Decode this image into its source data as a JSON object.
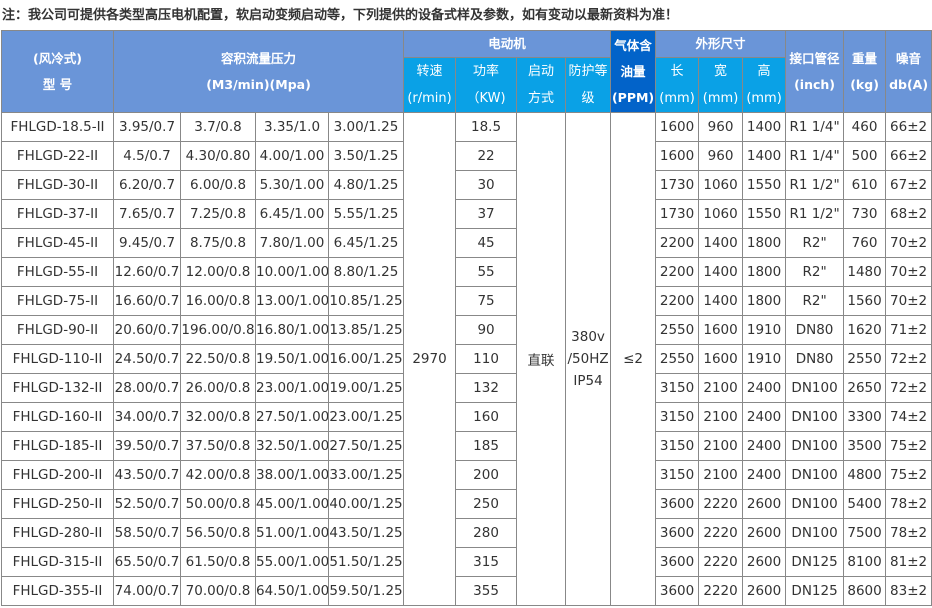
{
  "note": "注：我公司可提供各类型高压电机配置，软启动变频启动等，下列提供的设备式样及参数，如有变动以最新资料为准！",
  "header": {
    "model": [
      "(风冷式)",
      "型 号"
    ],
    "flow": [
      "容积流量压力",
      "(M3/min)(Mpa)"
    ],
    "motor": "电动机",
    "speed": [
      "转速",
      "(r/min)"
    ],
    "power": [
      "功率",
      "（KW)"
    ],
    "start": [
      "启动",
      "方式"
    ],
    "protect": [
      "防护等",
      "级"
    ],
    "oil": [
      "气体含",
      "油量",
      "(PPM)"
    ],
    "dims": "外形尺寸",
    "length": [
      "长",
      "(mm)"
    ],
    "width": [
      "宽",
      "(mm)"
    ],
    "height": [
      "高",
      "(mm)"
    ],
    "port": [
      "接口管径",
      "(inch)"
    ],
    "weight": [
      "重量",
      "(kg)"
    ],
    "noise": [
      "噪音",
      "db(A)"
    ]
  },
  "colors": {
    "header": "#6a95d8",
    "subheader": "#0aa1e6",
    "oil_header": "#0263c9"
  },
  "shared": {
    "speed": "2970",
    "start": "直联",
    "protect": [
      "380v",
      "/50HZ",
      "IP54"
    ],
    "oil": "≤2"
  },
  "rows": [
    [
      "FHLGD-18.5-II",
      "3.95/0.7",
      "3.7/0.8",
      "3.35/1.0",
      "3.00/1.25",
      "18.5",
      "1600",
      "960",
      "1400",
      "R1 1/4\"",
      "460",
      "66±2"
    ],
    [
      "FHLGD-22-II",
      "4.5/0.7",
      "4.30/0.80",
      "4.00/1.00",
      "3.50/1.25",
      "22",
      "1600",
      "960",
      "1400",
      "R1 1/4\"",
      "500",
      "66±2"
    ],
    [
      "FHLGD-30-II",
      "6.20/0.7",
      "6.00/0.8",
      "5.30/1.00",
      "4.80/1.25",
      "30",
      "1730",
      "1060",
      "1550",
      "R1 1/2\"",
      "610",
      "67±2"
    ],
    [
      "FHLGD-37-II",
      "7.65/0.7",
      "7.25/0.8",
      "6.45/1.00",
      "5.55/1.25",
      "37",
      "1730",
      "1060",
      "1550",
      "R1 1/2\"",
      "730",
      "68±2"
    ],
    [
      "FHLGD-45-II",
      "9.45/0.7",
      "8.75/0.8",
      "7.80/1.00",
      "6.45/1.25",
      "45",
      "2200",
      "1400",
      "1800",
      "R2\"",
      "760",
      "70±2"
    ],
    [
      "FHLGD-55-II",
      "12.60/0.7",
      "12.00/0.8",
      "10.00/1.00",
      "8.80/1.25",
      "55",
      "2200",
      "1400",
      "1800",
      "R2\"",
      "1480",
      "70±2"
    ],
    [
      "FHLGD-75-II",
      "16.60/0.7",
      "16.00/0.8",
      "13.00/1.00",
      "10.85/1.25",
      "75",
      "2200",
      "1400",
      "1800",
      "R2\"",
      "1560",
      "70±2"
    ],
    [
      "FHLGD-90-II",
      "20.60/0.7",
      "196.00/0.8",
      "16.80/1.00",
      "13.85/1.25",
      "90",
      "2550",
      "1600",
      "1910",
      "DN80",
      "1620",
      "71±2"
    ],
    [
      "FHLGD-110-II",
      "24.50/0.7",
      "22.50/0.8",
      "19.50/1.00",
      "16.00/1.25",
      "110",
      "2550",
      "1600",
      "1910",
      "DN80",
      "2550",
      "72±2"
    ],
    [
      "FHLGD-132-II",
      "28.00/0.7",
      "26.00/0.8",
      "23.00/1.00",
      "19.00/1.25",
      "132",
      "3150",
      "2100",
      "2400",
      "DN100",
      "2650",
      "72±2"
    ],
    [
      "FHLGD-160-II",
      "34.00/0.7",
      "32.00/0.8",
      "27.50/1.00",
      "23.00/1.25",
      "160",
      "3150",
      "2100",
      "2400",
      "DN100",
      "3300",
      "74±2"
    ],
    [
      "FHLGD-185-II",
      "39.50/0.7",
      "37.50/0.8",
      "32.50/1.00",
      "27.50/1.25",
      "185",
      "3150",
      "2100",
      "2400",
      "DN100",
      "3500",
      "75±2"
    ],
    [
      "FHLGD-200-II",
      "43.50/0.7",
      "42.00/0.8",
      "38.00/1.00",
      "33.00/1.25",
      "200",
      "3150",
      "2100",
      "2400",
      "DN100",
      "4800",
      "75±2"
    ],
    [
      "FHLGD-250-II",
      "52.50/0.7",
      "50.00/0.8",
      "45.00/1.00",
      "40.00/1.25",
      "250",
      "3600",
      "2220",
      "2600",
      "DN100",
      "5400",
      "78±2"
    ],
    [
      "FHLGD-280-II",
      "58.50/0.7",
      "56.50/0.8",
      "51.00/1.00",
      "43.50/1.25",
      "280",
      "3600",
      "2220",
      "2600",
      "DN100",
      "7500",
      "78±2"
    ],
    [
      "FHLGD-315-II",
      "65.50/0.7",
      "61.50/0.8",
      "55.00/1.00",
      "51.50/1.25",
      "315",
      "3600",
      "2220",
      "2600",
      "DN125",
      "8100",
      "81±2"
    ],
    [
      "FHLGD-355-II",
      "74.00/0.7",
      "70.00/0.8",
      "64.50/1.00",
      "59.50/1.25",
      "355",
      "3600",
      "2220",
      "2600",
      "DN125",
      "8600",
      "83±2"
    ]
  ]
}
